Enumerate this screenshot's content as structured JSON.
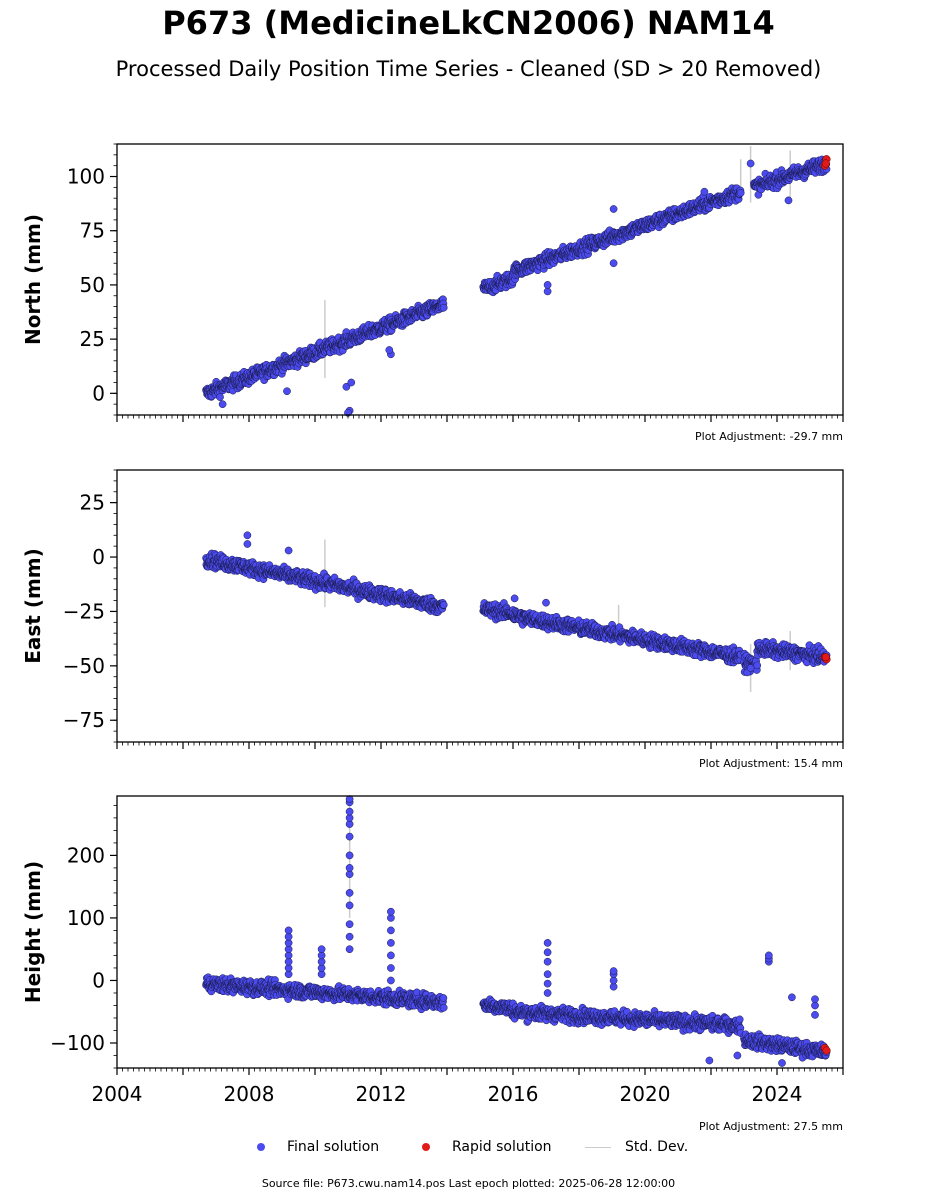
{
  "title": "P673 (MedicineLkCN2006) NAM14",
  "subtitle": "Processed Daily Position Time Series - Cleaned (SD > 20 Removed)",
  "legend": {
    "final": "Final solution",
    "rapid": "Rapid solution",
    "std": "Std. Dev."
  },
  "colors": {
    "final": "#4b4bef",
    "final_edge": "#1a1a4a",
    "rapid": "#e31a1a",
    "std": "#cccccc"
  },
  "footer": "Source file: P673.cwu.nam14.pos  Last epoch plotted: 2025-06-28 12:00:00",
  "chart_data": [
    {
      "type": "scatter",
      "ylabel": "North (mm)",
      "adjustment": "Plot Adjustment: -29.7 mm",
      "xlim": [
        2004,
        2026
      ],
      "ylim": [
        -10,
        115
      ],
      "yticks": [
        0,
        25,
        50,
        75,
        100
      ],
      "trend": [
        {
          "x": [
            2006.7,
            2013.9
          ],
          "y": [
            0,
            41
          ]
        },
        {
          "x": [
            2015.1,
            2016.0
          ],
          "y": [
            48,
            53
          ]
        },
        {
          "x": [
            2016.0,
            2022.9
          ],
          "y": [
            56,
            93
          ]
        },
        {
          "x": [
            2023.3,
            2025.5
          ],
          "y": [
            95,
            106
          ]
        }
      ],
      "outliers": [
        {
          "x": 2011.05,
          "y": -8
        },
        {
          "x": 2011.0,
          "y": -9
        },
        {
          "x": 2010.95,
          "y": 3
        },
        {
          "x": 2011.1,
          "y": 5
        },
        {
          "x": 2009.15,
          "y": 1
        },
        {
          "x": 2012.3,
          "y": 18
        },
        {
          "x": 2012.25,
          "y": 20
        },
        {
          "x": 2017.05,
          "y": 47
        },
        {
          "x": 2017.05,
          "y": 50
        },
        {
          "x": 2019.05,
          "y": 85
        },
        {
          "x": 2019.05,
          "y": 60
        },
        {
          "x": 2023.2,
          "y": 106
        },
        {
          "x": 2024.35,
          "y": 89
        },
        {
          "x": 2021.8,
          "y": 93
        },
        {
          "x": 2007.2,
          "y": -5
        }
      ],
      "stddev_bars": [
        {
          "x": 2010.3,
          "y0": 7,
          "y1": 43
        },
        {
          "x": 2023.2,
          "y0": 88,
          "y1": 114
        },
        {
          "x": 2024.4,
          "y0": 90,
          "y1": 112
        },
        {
          "x": 2022.9,
          "y0": 92,
          "y1": 108
        }
      ],
      "rapid": [
        {
          "x": 2025.45,
          "y": 105
        },
        {
          "x": 2025.5,
          "y": 108
        },
        {
          "x": 2025.48,
          "y": 106
        }
      ]
    },
    {
      "type": "scatter",
      "ylabel": "East (mm)",
      "adjustment": "Plot Adjustment: 15.4 mm",
      "xlim": [
        2004,
        2026
      ],
      "ylim": [
        -85,
        40
      ],
      "yticks": [
        -75,
        -50,
        -25,
        0,
        25
      ],
      "trend": [
        {
          "x": [
            2006.7,
            2013.9
          ],
          "y": [
            -1,
            -23
          ]
        },
        {
          "x": [
            2015.1,
            2016.0
          ],
          "y": [
            -24,
            -26
          ]
        },
        {
          "x": [
            2016.0,
            2022.9
          ],
          "y": [
            -27,
            -46
          ]
        },
        {
          "x": [
            2023.0,
            2023.4
          ],
          "y": [
            -48,
            -50
          ]
        },
        {
          "x": [
            2023.4,
            2025.5
          ],
          "y": [
            -42,
            -46
          ]
        }
      ],
      "outliers": [
        {
          "x": 2007.95,
          "y": 10
        },
        {
          "x": 2007.95,
          "y": 6
        },
        {
          "x": 2009.2,
          "y": 3
        },
        {
          "x": 2016.05,
          "y": -19
        },
        {
          "x": 2017.0,
          "y": -21
        },
        {
          "x": 2023.1,
          "y": -53
        },
        {
          "x": 2023.2,
          "y": -51
        }
      ],
      "stddev_bars": [
        {
          "x": 2010.3,
          "y0": -23,
          "y1": 8
        },
        {
          "x": 2023.2,
          "y0": -62,
          "y1": -40
        },
        {
          "x": 2024.4,
          "y0": -52,
          "y1": -34
        },
        {
          "x": 2019.2,
          "y0": -40,
          "y1": -22
        }
      ],
      "rapid": [
        {
          "x": 2025.45,
          "y": -46
        },
        {
          "x": 2025.5,
          "y": -47
        },
        {
          "x": 2025.48,
          "y": -46
        }
      ]
    },
    {
      "type": "scatter",
      "ylabel": "Height (mm)",
      "adjustment": "Plot Adjustment: 27.5 mm",
      "xlim": [
        2004,
        2026
      ],
      "ylim": [
        -140,
        295
      ],
      "xticks": [
        2004,
        2008,
        2012,
        2016,
        2020,
        2024
      ],
      "xticklabels": [
        "2004",
        "2008",
        "2012",
        "2016",
        "2020",
        "2024"
      ],
      "yticks": [
        -100,
        0,
        100,
        200
      ],
      "trend": [
        {
          "x": [
            2006.7,
            2013.9
          ],
          "y": [
            -5,
            -35
          ]
        },
        {
          "x": [
            2015.1,
            2016.0
          ],
          "y": [
            -38,
            -45
          ]
        },
        {
          "x": [
            2016.0,
            2022.9
          ],
          "y": [
            -50,
            -72
          ]
        },
        {
          "x": [
            2023.0,
            2025.5
          ],
          "y": [
            -95,
            -115
          ]
        }
      ],
      "spikes": [
        {
          "x": 2009.2,
          "y": [
            10,
            20,
            30,
            40,
            50,
            60,
            70,
            80
          ]
        },
        {
          "x": 2010.2,
          "y": [
            10,
            20,
            30,
            40,
            50
          ]
        },
        {
          "x": 2011.05,
          "y": [
            50,
            70,
            90,
            120,
            140,
            170,
            180,
            200,
            230,
            250,
            260,
            270,
            285,
            290
          ]
        },
        {
          "x": 2012.3,
          "y": [
            0,
            20,
            40,
            60,
            80,
            100,
            110
          ]
        },
        {
          "x": 2017.05,
          "y": [
            -20,
            -5,
            10,
            30,
            45,
            60
          ]
        },
        {
          "x": 2019.05,
          "y": [
            -10,
            0,
            10,
            15
          ]
        },
        {
          "x": 2023.75,
          "y": [
            30,
            35,
            40
          ]
        },
        {
          "x": 2025.15,
          "y": [
            -40,
            -30,
            -55
          ]
        },
        {
          "x": 2024.45,
          "y": [
            -27
          ]
        },
        {
          "x": 2021.95,
          "y": [
            -128
          ]
        },
        {
          "x": 2022.8,
          "y": [
            -120
          ]
        },
        {
          "x": 2024.15,
          "y": [
            -132
          ]
        }
      ],
      "stddev_bars": [
        {
          "x": 2011.05,
          "y0": 100,
          "y1": 280
        },
        {
          "x": 2009.2,
          "y0": 20,
          "y1": 80
        }
      ],
      "rapid": [
        {
          "x": 2025.45,
          "y": -108
        },
        {
          "x": 2025.5,
          "y": -112
        }
      ]
    }
  ]
}
